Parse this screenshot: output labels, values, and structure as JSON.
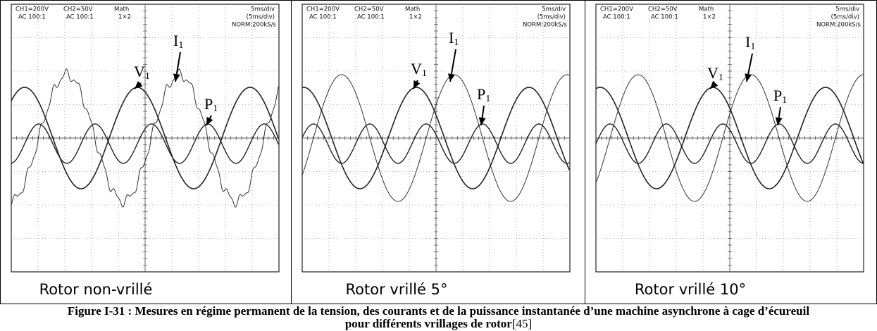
{
  "panels": [
    {
      "header": {
        "ch1": "CH1=200V",
        "ch1_mode": "AC  100:1",
        "ch2": "CH2=50V",
        "ch2_mode": "AC  100:1",
        "math": "Math",
        "math_op": "1×2",
        "timebase": "5ms/div",
        "timebase2": "(5ms/div)",
        "sampling": "NORM:200kS/s"
      },
      "labels": [
        {
          "letter": "V",
          "sub": "1"
        },
        {
          "letter": "I",
          "sub": "1"
        },
        {
          "letter": "P",
          "sub": "1"
        }
      ],
      "caption": "Rotor non-vrillé"
    },
    {
      "header": {
        "ch1": "CH1=200V",
        "ch1_mode": "AC  100:1",
        "ch2": "CH2=50V",
        "ch2_mode": "AC  100:1",
        "math": "Math",
        "math_op": "1×2",
        "timebase": "5ms/div",
        "timebase2": "(5ms/div)",
        "sampling": "NORM:200kS/s"
      },
      "labels": [
        {
          "letter": "V",
          "sub": "1"
        },
        {
          "letter": "I",
          "sub": "1"
        },
        {
          "letter": "P",
          "sub": "1"
        }
      ],
      "caption": "Rotor vrillé 5°"
    },
    {
      "header": {
        "ch1": "CH1=200V",
        "ch1_mode": "AC  100:1",
        "ch2": "CH2=50V",
        "ch2_mode": "AC  100:1",
        "math": "Math",
        "math_op": "1×2",
        "timebase": "5ms/div",
        "timebase2": "(5ms/div)",
        "sampling": "NORM:200kS/s"
      },
      "labels": [
        {
          "letter": "V",
          "sub": "1"
        },
        {
          "letter": "I",
          "sub": "1"
        },
        {
          "letter": "P",
          "sub": "1"
        }
      ],
      "caption": "Rotor vrillé 10°"
    }
  ],
  "figure_caption": {
    "text": "Figure I-31 : Mesures en régime permanent de la tension, des courants et de la puissance instantanée d’une machine asynchrone à cage d’écureuil pour différents vrillages de rotor",
    "ref": "[45]"
  }
}
